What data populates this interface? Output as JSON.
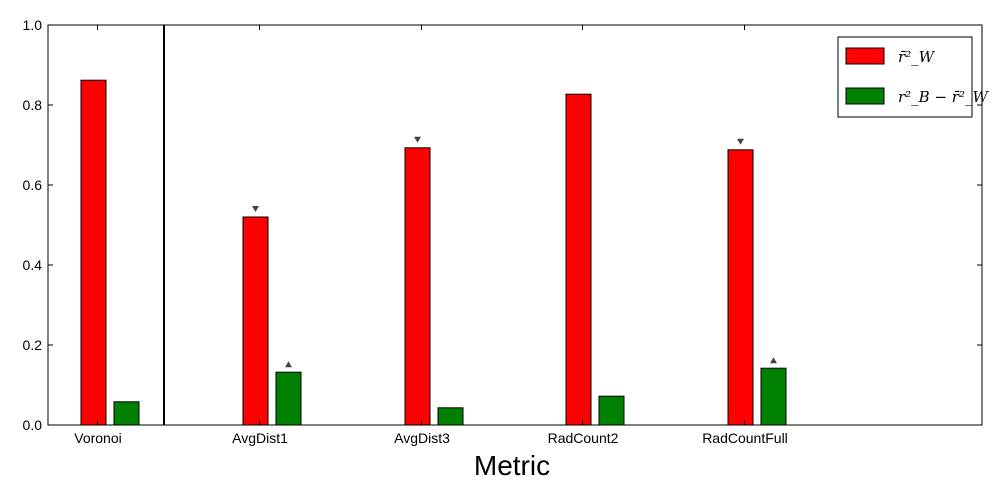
{
  "chart_data": {
    "type": "bar",
    "title": "",
    "xlabel": "Metric",
    "ylabel": "",
    "ylim": [
      0,
      1.0
    ],
    "yticks": [
      "0.0",
      "0.2",
      "0.4",
      "0.6",
      "0.8",
      "1.0"
    ],
    "categories": [
      "Voronoi",
      "AvgDist1",
      "AvgDist3",
      "RadCount2",
      "RadCountFull"
    ],
    "series": [
      {
        "name": "r̄²_W",
        "color": "#ff0000",
        "values": [
          0.862,
          0.52,
          0.693,
          0.827,
          0.688
        ]
      },
      {
        "name": "r²_B − r̄²_W",
        "color": "#008000",
        "values": [
          0.058,
          0.132,
          0.043,
          0.072,
          0.142
        ]
      }
    ],
    "markers": [
      {
        "category": "AvgDist1",
        "series": 0,
        "direction": "down"
      },
      {
        "category": "AvgDist3",
        "series": 0,
        "direction": "down"
      },
      {
        "category": "RadCountFull",
        "series": 0,
        "direction": "down"
      },
      {
        "category": "AvgDist1",
        "series": 1,
        "direction": "up"
      },
      {
        "category": "RadCountFull",
        "series": 1,
        "direction": "up"
      }
    ],
    "separator_after_category": "Voronoi",
    "legend_position": "top-right",
    "grid": false
  }
}
